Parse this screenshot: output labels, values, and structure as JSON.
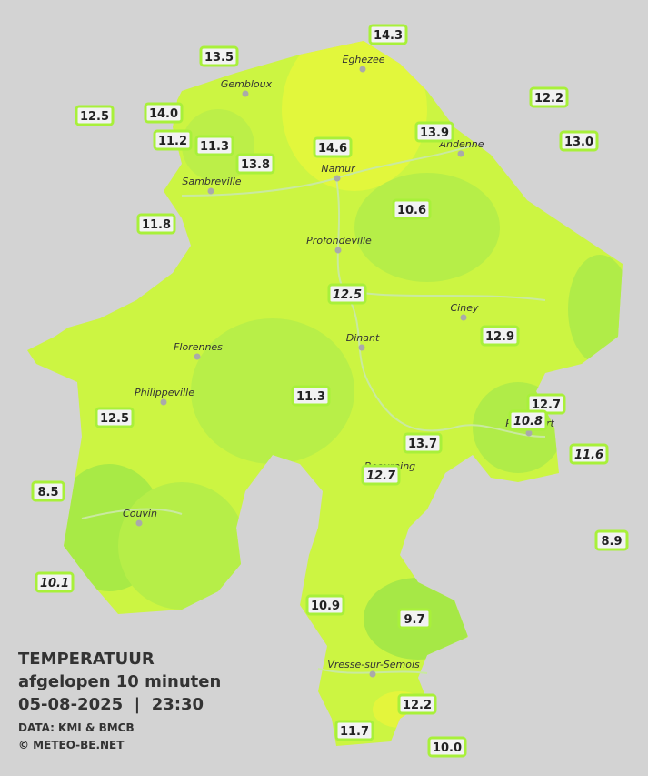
{
  "legend": {
    "title": "TEMPERATUUR",
    "subtitle": "afgelopen 10 minuten",
    "datetime": "05-08-2025  |  23:30",
    "source": "DATA: KMI & BMCB",
    "copyright": "© METEO-BE.NET"
  },
  "cities": [
    "Eghezee",
    "Gembloux",
    "Andenne",
    "Namur",
    "Sambreville",
    "Profondeville",
    "Ciney",
    "Dinant",
    "Florennes",
    "Philippeville",
    "Rochefort",
    "Beauraing",
    "Couvin",
    "Vresse-sur-Semois"
  ],
  "stations": [
    {
      "value": "13.5",
      "italic": false
    },
    {
      "value": "14.3",
      "italic": false
    },
    {
      "value": "12.5",
      "italic": false
    },
    {
      "value": "14.0",
      "italic": false
    },
    {
      "value": "12.2",
      "italic": false
    },
    {
      "value": "11.2",
      "italic": false
    },
    {
      "value": "11.3",
      "italic": false
    },
    {
      "value": "13.8",
      "italic": false
    },
    {
      "value": "14.6",
      "italic": false
    },
    {
      "value": "13.9",
      "italic": false
    },
    {
      "value": "13.0",
      "italic": false
    },
    {
      "value": "10.6",
      "italic": false
    },
    {
      "value": "11.8",
      "italic": false
    },
    {
      "value": "12.5",
      "italic": true
    },
    {
      "value": "12.9",
      "italic": false
    },
    {
      "value": "11.3",
      "italic": false
    },
    {
      "value": "12.7",
      "italic": false
    },
    {
      "value": "10.8",
      "italic": true
    },
    {
      "value": "12.5",
      "italic": false
    },
    {
      "value": "13.7",
      "italic": false
    },
    {
      "value": "11.6",
      "italic": true
    },
    {
      "value": "12.7",
      "italic": true
    },
    {
      "value": "8.5",
      "italic": false
    },
    {
      "value": "8.9",
      "italic": false
    },
    {
      "value": "10.1",
      "italic": true
    },
    {
      "value": "10.9",
      "italic": false
    },
    {
      "value": "9.7",
      "italic": false
    },
    {
      "value": "12.2",
      "italic": false
    },
    {
      "value": "11.7",
      "italic": false
    },
    {
      "value": "10.0",
      "italic": false
    }
  ]
}
